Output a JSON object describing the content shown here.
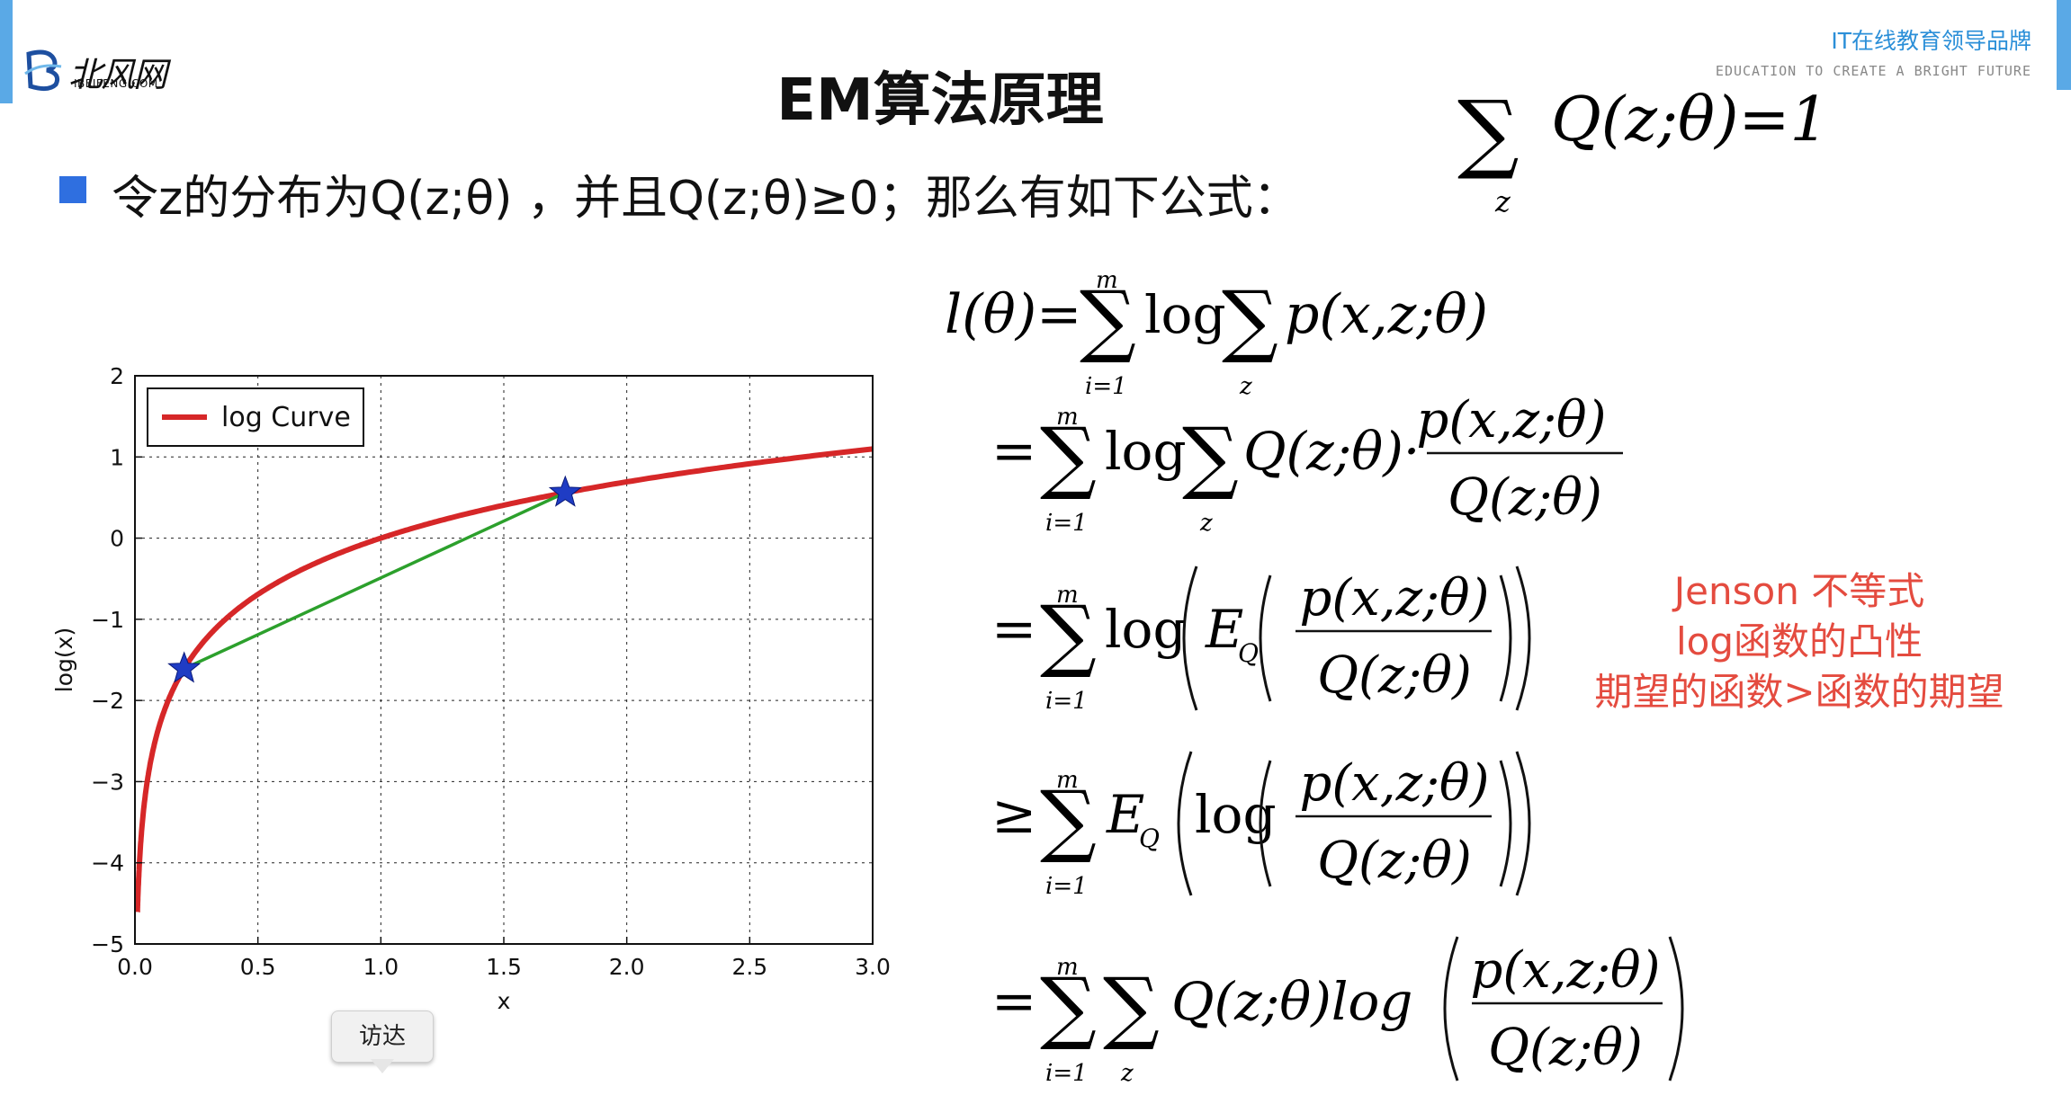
{
  "header": {
    "logo_cn": "北风网",
    "logo_en": "IBEIFENG.COM",
    "brand_cn": "IT在线教育领导品牌",
    "brand_en": "EDUCATION TO CREATE A BRIGHT FUTURE"
  },
  "slide": {
    "title": "EM算法原理",
    "bullet": "令z的分布为Q(z;θ) ，并且Q(z;θ)≥0；那么有如下公式：",
    "annotation": [
      "Jenson 不等式",
      "log函数的凸性",
      "期望的函数>函数的期望"
    ],
    "tooltip": "访达"
  },
  "formulas": {
    "sum_eq": [
      "∑",
      "z",
      "Q(z;θ)=1"
    ],
    "derivation": [
      {
        "lead": "l(θ)=",
        "sum1_top": "m",
        "sum1_bottom": "i=1",
        "body1": "log",
        "sum2_bottom": "z",
        "body2": "p(x,z;θ)"
      },
      {
        "lead": "=",
        "sum1_top": "m",
        "sum1_bottom": "i=1",
        "body1": "log",
        "sum2_bottom": "z",
        "body2": "Q(z;θ)·",
        "frac_num": "p(x,z;θ)",
        "frac_den": "Q(z;θ)"
      },
      {
        "lead": "=",
        "sum1_top": "m",
        "sum1_bottom": "i=1",
        "body1": "log",
        "E": "E",
        "E_sub": "Q",
        "frac_num": "p(x,z;θ)",
        "frac_den": "Q(z;θ)"
      },
      {
        "lead": "≥",
        "sum1_top": "m",
        "sum1_bottom": "i=1",
        "E": "E",
        "E_sub": "Q",
        "body1": "log",
        "frac_num": "p(x,z;θ)",
        "frac_den": "Q(z;θ)"
      },
      {
        "lead": "=",
        "sum1_top": "m",
        "sum1_bottom": "i=1",
        "sum2_bottom": "z",
        "body2": "Q(z;θ)log",
        "frac_num": "p(x,z;θ)",
        "frac_den": "Q(z;θ)"
      }
    ]
  },
  "chart_data": {
    "type": "line",
    "title": "",
    "xlabel": "x",
    "ylabel": "log(x)",
    "xlim": [
      0.0,
      3.0
    ],
    "ylim": [
      -5,
      2
    ],
    "xticks": [
      "0.0",
      "0.5",
      "1.0",
      "1.5",
      "2.0",
      "2.5",
      "3.0"
    ],
    "yticks": [
      "2",
      "1",
      "0",
      "−1",
      "−2",
      "−3",
      "−4",
      "−5"
    ],
    "grid": true,
    "legend": {
      "position": "top-left",
      "entries": [
        "log Curve"
      ]
    },
    "series": [
      {
        "name": "log Curve",
        "function": "ln(x)",
        "x_start": 0.01,
        "x_end": 3.0,
        "color": "#d62728"
      }
    ],
    "chord": {
      "x": [
        0.2,
        1.75
      ],
      "y": [
        -1.609,
        0.56
      ],
      "color": "#2ca02c"
    },
    "markers": {
      "x": [
        0.2,
        1.75
      ],
      "y": [
        -1.609,
        0.56
      ],
      "shape": "star",
      "color": "#1f3cc4"
    }
  }
}
